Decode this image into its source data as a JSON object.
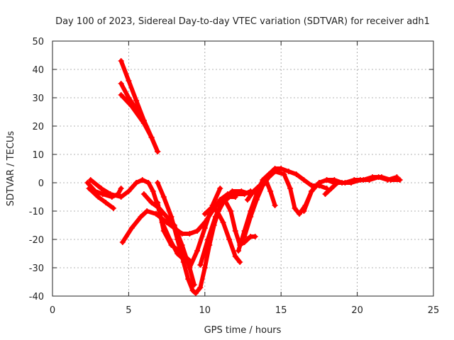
{
  "chart_data": {
    "type": "scatter",
    "title": "Day 100 of 2023, Sidereal Day-to-day VTEC variation (SDTVAR) for receiver adh1",
    "xlabel": "GPS time / hours",
    "ylabel": "SDTVAR / TECUs",
    "xlim": [
      0,
      25
    ],
    "ylim": [
      -40,
      50
    ],
    "xticks": [
      0,
      5,
      10,
      15,
      20,
      25
    ],
    "yticks": [
      -40,
      -30,
      -20,
      -10,
      0,
      10,
      20,
      30,
      40,
      50
    ],
    "grid": true,
    "marker": "plus",
    "color": "#ff0000",
    "series": [
      {
        "points": [
          [
            4.5,
            43
          ],
          [
            5.0,
            36
          ],
          [
            5.5,
            29
          ],
          [
            6.0,
            22
          ],
          [
            6.5,
            16
          ],
          [
            6.9,
            11
          ]
        ]
      },
      {
        "points": [
          [
            4.5,
            35
          ],
          [
            5.0,
            30
          ],
          [
            5.5,
            26
          ],
          [
            6.0,
            21
          ],
          [
            6.5,
            16
          ],
          [
            6.9,
            11
          ]
        ]
      },
      {
        "points": [
          [
            4.5,
            31
          ],
          [
            5.2,
            27
          ],
          [
            6.0,
            21
          ]
        ]
      },
      {
        "points": [
          [
            2.3,
            0
          ],
          [
            2.8,
            -3
          ],
          [
            3.3,
            -4
          ],
          [
            3.9,
            -5
          ],
          [
            4.3,
            -4
          ],
          [
            4.5,
            -2
          ]
        ]
      },
      {
        "points": [
          [
            2.4,
            -2
          ],
          [
            3.0,
            -5
          ],
          [
            3.5,
            -7
          ],
          [
            4.0,
            -9
          ]
        ]
      },
      {
        "points": [
          [
            2.5,
            1
          ],
          [
            3.2,
            -2
          ],
          [
            3.8,
            -4
          ],
          [
            4.5,
            -5
          ],
          [
            5.0,
            -3
          ],
          [
            5.5,
            0
          ],
          [
            5.9,
            1
          ],
          [
            6.3,
            0
          ],
          [
            6.6,
            -3
          ],
          [
            6.9,
            -8
          ],
          [
            7.2,
            -14
          ],
          [
            7.7,
            -20
          ],
          [
            8.2,
            -25
          ],
          [
            8.6,
            -27
          ]
        ]
      },
      {
        "points": [
          [
            4.6,
            -21
          ],
          [
            5.2,
            -16
          ],
          [
            5.8,
            -12
          ],
          [
            6.2,
            -10
          ],
          [
            6.8,
            -11
          ],
          [
            7.5,
            -14
          ],
          [
            8.0,
            -16
          ],
          [
            8.5,
            -18
          ],
          [
            9.0,
            -18
          ],
          [
            9.5,
            -17
          ],
          [
            10.0,
            -14
          ],
          [
            10.5,
            -10
          ],
          [
            11.0,
            -6
          ],
          [
            11.5,
            -4
          ],
          [
            12.0,
            -4
          ],
          [
            12.6,
            -4
          ],
          [
            13.0,
            -3
          ]
        ]
      },
      {
        "points": [
          [
            6.9,
            -7
          ],
          [
            7.3,
            -17
          ],
          [
            7.8,
            -22
          ],
          [
            8.3,
            -24
          ],
          [
            8.7,
            -26
          ],
          [
            9.1,
            -28
          ]
        ]
      },
      {
        "points": [
          [
            6.9,
            0
          ],
          [
            7.3,
            -5
          ],
          [
            7.8,
            -12
          ],
          [
            8.2,
            -20
          ],
          [
            8.6,
            -28
          ],
          [
            8.9,
            -34
          ],
          [
            9.2,
            -38
          ],
          [
            9.4,
            -39
          ],
          [
            9.7,
            -37
          ],
          [
            10.0,
            -30
          ],
          [
            10.3,
            -22
          ],
          [
            10.6,
            -15
          ],
          [
            10.9,
            -10
          ],
          [
            11.2,
            -7
          ],
          [
            11.6,
            -5
          ],
          [
            12.0,
            -5
          ]
        ]
      },
      {
        "points": [
          [
            6.0,
            -4
          ],
          [
            6.5,
            -7
          ],
          [
            7.0,
            -9
          ],
          [
            7.5,
            -12
          ],
          [
            8.0,
            -15
          ],
          [
            8.5,
            -22
          ],
          [
            9.0,
            -30
          ],
          [
            9.3,
            -36
          ]
        ]
      },
      {
        "points": [
          [
            9.0,
            -30
          ],
          [
            9.5,
            -24
          ],
          [
            10.0,
            -16
          ],
          [
            10.5,
            -8
          ],
          [
            11.0,
            -2
          ]
        ]
      },
      {
        "points": [
          [
            9.7,
            -29
          ],
          [
            10.2,
            -20
          ],
          [
            10.7,
            -12
          ],
          [
            11.2,
            -6
          ],
          [
            11.8,
            -3
          ],
          [
            12.4,
            -3
          ],
          [
            13.0,
            -4
          ]
        ]
      },
      {
        "points": [
          [
            10.0,
            -11
          ],
          [
            10.4,
            -9
          ],
          [
            10.8,
            -10
          ],
          [
            11.2,
            -14
          ],
          [
            11.6,
            -20
          ],
          [
            12.0,
            -26
          ],
          [
            12.3,
            -28
          ]
        ]
      },
      {
        "points": [
          [
            11.3,
            -6
          ],
          [
            11.7,
            -10
          ],
          [
            12.0,
            -17
          ],
          [
            12.3,
            -22
          ],
          [
            12.6,
            -21
          ],
          [
            13.0,
            -19
          ],
          [
            13.3,
            -19
          ]
        ]
      },
      {
        "points": [
          [
            12.2,
            -24
          ],
          [
            12.6,
            -17
          ],
          [
            13.0,
            -10
          ],
          [
            13.4,
            -4
          ],
          [
            13.8,
            1
          ],
          [
            14.2,
            3
          ],
          [
            14.6,
            5
          ],
          [
            15.0,
            5
          ],
          [
            15.5,
            4
          ],
          [
            16.0,
            3
          ],
          [
            16.5,
            1
          ],
          [
            17.0,
            -1
          ],
          [
            17.5,
            -1
          ],
          [
            18.0,
            -2
          ]
        ]
      },
      {
        "points": [
          [
            12.6,
            -19
          ],
          [
            13.0,
            -12
          ],
          [
            13.4,
            -6
          ],
          [
            13.8,
            -1
          ],
          [
            14.2,
            2
          ],
          [
            14.6,
            4
          ],
          [
            15.2,
            3
          ],
          [
            15.6,
            -2
          ],
          [
            15.9,
            -9
          ],
          [
            16.2,
            -11
          ],
          [
            16.6,
            -8
          ],
          [
            17.0,
            -3
          ],
          [
            17.5,
            0
          ],
          [
            18.0,
            1
          ],
          [
            18.5,
            0
          ]
        ]
      },
      {
        "points": [
          [
            12.8,
            -6
          ],
          [
            13.2,
            -3
          ],
          [
            13.6,
            -1
          ],
          [
            14.0,
            1
          ],
          [
            14.3,
            -3
          ],
          [
            14.6,
            -8
          ]
        ]
      },
      {
        "points": [
          [
            16.5,
            -10
          ],
          [
            17.0,
            -3
          ],
          [
            17.5,
            0
          ],
          [
            18.0,
            1
          ],
          [
            18.5,
            1
          ],
          [
            19.0,
            0
          ],
          [
            19.6,
            0
          ],
          [
            20.2,
            1
          ],
          [
            20.8,
            1
          ],
          [
            21.4,
            2
          ],
          [
            22.0,
            1
          ],
          [
            22.6,
            2
          ]
        ]
      },
      {
        "points": [
          [
            17.9,
            -4
          ],
          [
            18.3,
            -2
          ],
          [
            18.7,
            0
          ],
          [
            19.2,
            0
          ],
          [
            19.8,
            1
          ],
          [
            20.4,
            1
          ],
          [
            21.0,
            2
          ],
          [
            21.6,
            2
          ],
          [
            22.2,
            1
          ],
          [
            22.8,
            1
          ]
        ]
      }
    ]
  }
}
